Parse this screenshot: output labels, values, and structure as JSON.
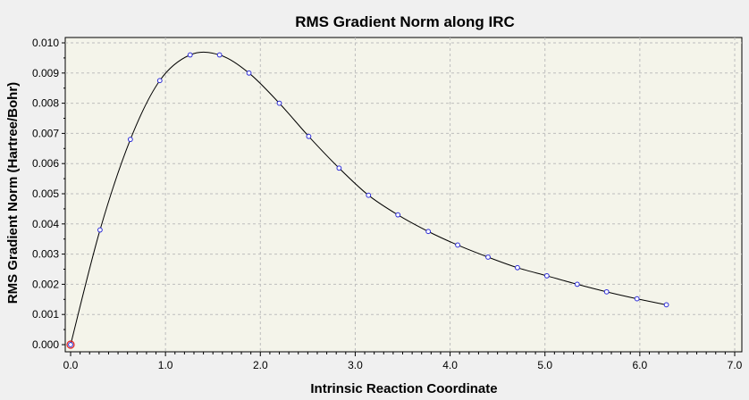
{
  "chart_data": {
    "type": "line",
    "title": "RMS Gradient Norm along IRC",
    "xlabel": "Intrinsic Reaction Coordinate",
    "ylabel": "RMS Gradient Norm (Hartree/Bohr)",
    "xlim": [
      0,
      7
    ],
    "ylim": [
      0,
      0.01
    ],
    "x_ticks": [
      "0.0",
      "1.0",
      "2.0",
      "3.0",
      "4.0",
      "5.0",
      "6.0",
      "7.0"
    ],
    "y_ticks": [
      "0.000",
      "0.001",
      "0.002",
      "0.003",
      "0.004",
      "0.005",
      "0.006",
      "0.007",
      "0.008",
      "0.009",
      "0.010"
    ],
    "grid": true,
    "legend": false,
    "current_point_color": "#e02020",
    "marker_color": "#2b2bd6",
    "series": [
      {
        "x": [
          0.0,
          0.31,
          0.63,
          0.94,
          1.26,
          1.57,
          1.88,
          2.2,
          2.51,
          2.83,
          3.14,
          3.45,
          3.77,
          4.08,
          4.4,
          4.71,
          5.02,
          5.34,
          5.65,
          5.97,
          6.28
        ],
        "y": [
          0.0,
          0.0038,
          0.0068,
          0.00875,
          0.0096,
          0.0096,
          0.009,
          0.008,
          0.0069,
          0.00585,
          0.00495,
          0.0043,
          0.00375,
          0.0033,
          0.0029,
          0.00255,
          0.00228,
          0.002,
          0.00175,
          0.00152,
          0.00132
        ]
      }
    ],
    "current_point": {
      "x": 0.0,
      "y": 0.0
    }
  }
}
